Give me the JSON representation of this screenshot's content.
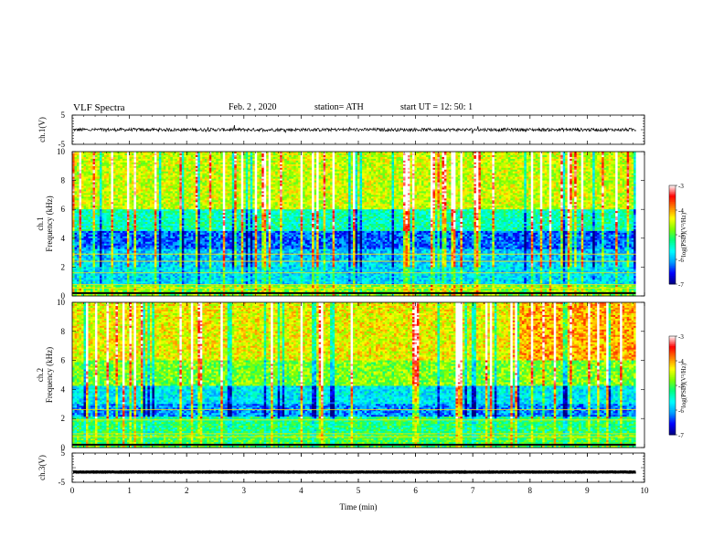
{
  "header": {
    "title": "VLF  Spectra",
    "date": "Feb. 2  , 2020",
    "station": "station= ATH",
    "start": "start  UT  =    12: 50: 1"
  },
  "chart_data": [
    {
      "type": "line",
      "id": "ch1-waveform",
      "ylabel": "ch.1(V)",
      "ylim": [
        -5,
        5
      ],
      "yticks": [
        "5",
        "-5"
      ],
      "x_range_min": [
        0,
        9.85
      ],
      "approx_level": 0
    },
    {
      "type": "heatmap",
      "id": "ch1-spectrogram",
      "ylabel": "ch.1\nFrequency  (kHz)",
      "ylim_khz": [
        0,
        10
      ],
      "yticks": [
        "0",
        "2",
        "4",
        "6",
        "8",
        "10"
      ],
      "x_range_min": [
        0,
        9.85
      ],
      "colorbar": {
        "label": "log(PSD)(V²/Hz)",
        "range": [
          -7,
          -3
        ],
        "ticks": [
          "-3",
          "-4",
          "-5",
          "-6",
          "-7"
        ]
      }
    },
    {
      "type": "heatmap",
      "id": "ch2-spectrogram",
      "ylabel": "ch.2\nFrequency  (kHz)",
      "ylim_khz": [
        0,
        10
      ],
      "yticks": [
        "0",
        "2",
        "4",
        "6",
        "8",
        "10"
      ],
      "x_range_min": [
        0,
        9.85
      ],
      "colorbar": {
        "label": "log(PSD)(V²/Hz)",
        "range": [
          -7,
          -3
        ],
        "ticks": [
          "-3",
          "-4",
          "-5",
          "-6",
          "-7"
        ]
      }
    },
    {
      "type": "line",
      "id": "ch3-waveform",
      "ylabel": "ch.3(V)",
      "ylim": [
        -5,
        5
      ],
      "yticks": [
        "5",
        "-5"
      ],
      "x_range_min": [
        0,
        9.85
      ],
      "approx_level": -1.5
    }
  ],
  "xaxis": {
    "label": "Time  (min)",
    "range": [
      0,
      10
    ],
    "ticks": [
      "0",
      "1",
      "2",
      "3",
      "4",
      "5",
      "6",
      "7",
      "8",
      "9",
      "10"
    ]
  },
  "colors": {
    "colormap": [
      "#000080",
      "#0000ff",
      "#00a0ff",
      "#00ffff",
      "#00ff80",
      "#80ff00",
      "#ffff00",
      "#ff8000",
      "#ff0000",
      "#ffffff"
    ]
  }
}
